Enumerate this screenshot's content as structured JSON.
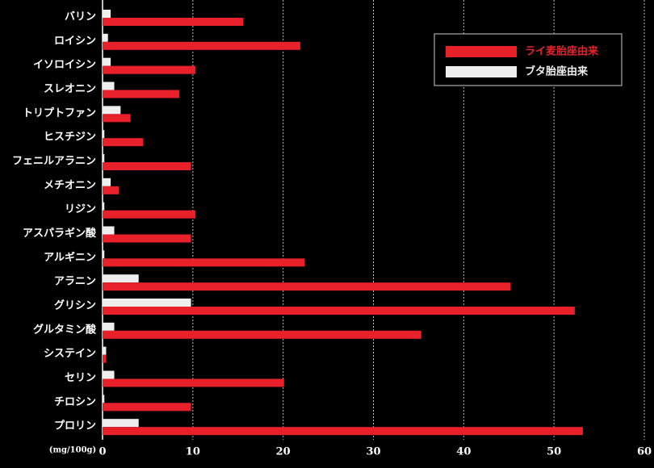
{
  "chart_data": {
    "type": "barh",
    "xlabel": "(mg/100g)",
    "categories": [
      "バリン",
      "ロイシン",
      "イソロイシン",
      "スレオニン",
      "トリプトファン",
      "ヒスチジン",
      "フェニルアラニン",
      "メチオニン",
      "リジン",
      "アスパラギン酸",
      "アルギニン",
      "アラニン",
      "グリシン",
      "グルタミン酸",
      "システイン",
      "セリン",
      "チロシン",
      "プロリン"
    ],
    "series": [
      {
        "name": "ライ麦胎座由来",
        "color": "#e8202a",
        "values": [
          15.6,
          21.9,
          10.3,
          8.5,
          3.1,
          4.5,
          9.8,
          1.8,
          10.3,
          9.8,
          22.4,
          45.2,
          52.3,
          35.3,
          0.4,
          20.1,
          9.8,
          53.2
        ]
      },
      {
        "name": "ブタ胎座由来",
        "color": "#eeeeee",
        "values": [
          0.9,
          0.6,
          0.9,
          1.3,
          2.0,
          0.2,
          0.2,
          0.9,
          0.2,
          1.3,
          0.2,
          4.0,
          9.8,
          1.3,
          0.4,
          1.3,
          0.2,
          4.0
        ]
      }
    ],
    "xlim": [
      0,
      60
    ],
    "xticks": [
      0,
      10,
      20,
      30,
      40,
      50,
      60
    ],
    "grid": true,
    "legend": "upper right"
  }
}
